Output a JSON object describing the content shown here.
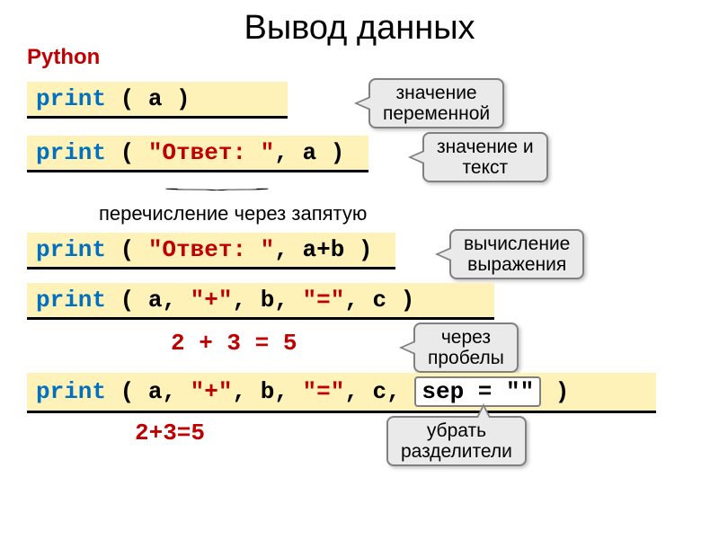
{
  "title": "Вывод данных",
  "python_label": "Python",
  "rows": [
    {
      "code": {
        "kw": "print",
        "open": " ( ",
        "args": [
          {
            "t": "var",
            "v": "a"
          }
        ],
        "close": " )"
      },
      "callout": "значение\nпеременной"
    },
    {
      "code": {
        "kw": "print",
        "open": " ( ",
        "args": [
          {
            "t": "str",
            "v": "\"Ответ: \""
          },
          {
            "t": "sep",
            "v": ", "
          },
          {
            "t": "var",
            "v": "a"
          }
        ],
        "close": " )"
      },
      "callout": "значение и\nтекст"
    }
  ],
  "brace_label": "перечисление через запятую",
  "row3": {
    "code": {
      "kw": "print",
      "open": " ( ",
      "args": [
        {
          "t": "str",
          "v": "\"Ответ: \""
        },
        {
          "t": "sep",
          "v": ", "
        },
        {
          "t": "var",
          "v": "a+b"
        }
      ],
      "close": " )"
    },
    "callout": "вычисление\nвыражения"
  },
  "row4": {
    "code": {
      "kw": "print",
      "open": " ( ",
      "args": [
        {
          "t": "var",
          "v": "a"
        },
        {
          "t": "sep",
          "v": ", "
        },
        {
          "t": "str",
          "v": "\"+\""
        },
        {
          "t": "sep",
          "v": ", "
        },
        {
          "t": "var",
          "v": "b"
        },
        {
          "t": "sep",
          "v": ", "
        },
        {
          "t": "str",
          "v": "\"=\""
        },
        {
          "t": "sep",
          "v": ", "
        },
        {
          "t": "var",
          "v": "c"
        }
      ],
      "close": " )"
    }
  },
  "result1": "2 + 3 = 5",
  "callout_spaces": "через\nпробелы",
  "row5": {
    "code": {
      "kw": "print",
      "open": " ( ",
      "args": [
        {
          "t": "var",
          "v": "a"
        },
        {
          "t": "sep",
          "v": ", "
        },
        {
          "t": "str",
          "v": "\"+\""
        },
        {
          "t": "sep",
          "v": ", "
        },
        {
          "t": "var",
          "v": "b"
        },
        {
          "t": "sep",
          "v": ", "
        },
        {
          "t": "str",
          "v": "\"=\""
        },
        {
          "t": "sep",
          "v": ", "
        },
        {
          "t": "var",
          "v": "c"
        },
        {
          "t": "sep",
          "v": ", "
        }
      ],
      "close": " )"
    },
    "sep_box": "sep = \"\""
  },
  "result2": "2+3=5",
  "callout_sep": "убрать\nразделители",
  "colors": {
    "title": "#000000",
    "python": "#c00000",
    "code_bg": "#fff2b8",
    "keyword": "#0070c0",
    "string": "#c00000",
    "callout_bg": "#eaeaea",
    "callout_border": "#808080",
    "result": "#c00000"
  }
}
